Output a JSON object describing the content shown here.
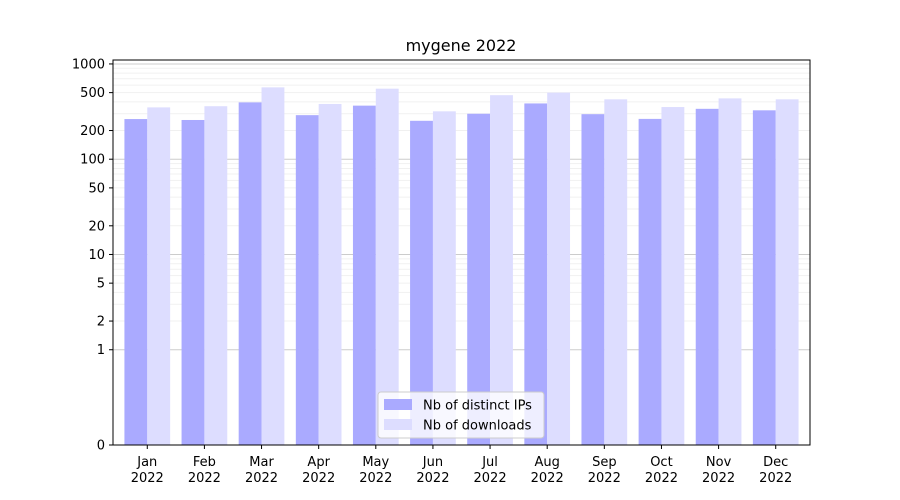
{
  "chart_data": {
    "type": "bar",
    "title": "mygene 2022",
    "xlabel": "",
    "ylabel": "",
    "yscale": "symlog",
    "ylim": [
      0,
      1100
    ],
    "grid": true,
    "legend_position": "bottom-center",
    "categories": [
      "Jan\n2022",
      "Feb\n2022",
      "Mar\n2022",
      "Apr\n2022",
      "May\n2022",
      "Jun\n2022",
      "Jul\n2022",
      "Aug\n2022",
      "Sep\n2022",
      "Oct\n2022",
      "Nov\n2022",
      "Dec\n2022"
    ],
    "y_ticks": [
      {
        "value": 0,
        "label": "0"
      },
      {
        "value": 1,
        "label": "1"
      },
      {
        "value": 2,
        "label": "2"
      },
      {
        "value": 5,
        "label": "5"
      },
      {
        "value": 10,
        "label": "10"
      },
      {
        "value": 20,
        "label": "20"
      },
      {
        "value": 50,
        "label": "50"
      },
      {
        "value": 100,
        "label": "100"
      },
      {
        "value": 200,
        "label": "200"
      },
      {
        "value": 500,
        "label": "500"
      },
      {
        "value": 1000,
        "label": "1000"
      }
    ],
    "series": [
      {
        "name": "Nb of distinct IPs",
        "color": "#aaaaff",
        "values": [
          264,
          258,
          395,
          290,
          365,
          253,
          300,
          385,
          297,
          265,
          338,
          326
        ]
      },
      {
        "name": "Nb of downloads",
        "color": "#ddddff",
        "values": [
          350,
          360,
          568,
          380,
          550,
          318,
          470,
          500,
          425,
          353,
          435,
          425
        ]
      }
    ]
  }
}
